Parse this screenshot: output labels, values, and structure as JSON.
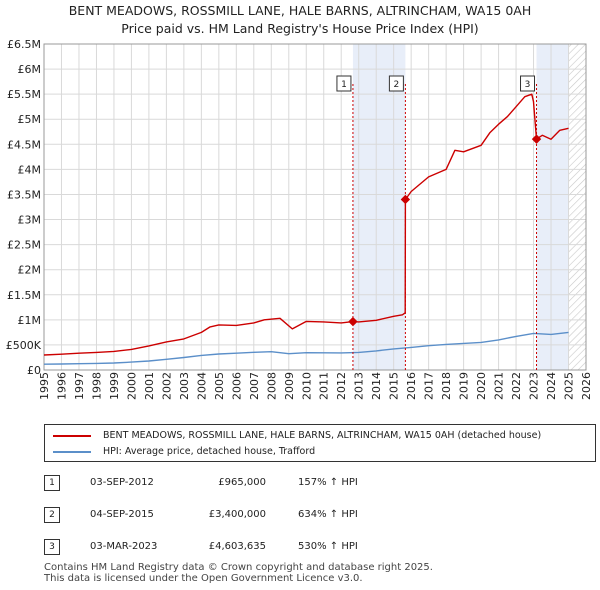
{
  "chart_data": {
    "type": "line",
    "title": "BENT MEADOWS, ROSSMILL LANE, HALE BARNS, ALTRINCHAM, WA15 0AH",
    "subtitle": "Price paid vs. HM Land Registry's House Price Index (HPI)",
    "xlim": [
      1995,
      2026
    ],
    "ylim": [
      0,
      6500000
    ],
    "x_ticks": [
      "1995",
      "1996",
      "1997",
      "1998",
      "1999",
      "2000",
      "2001",
      "2002",
      "2003",
      "2004",
      "2005",
      "2006",
      "2007",
      "2008",
      "2009",
      "2010",
      "2011",
      "2012",
      "2013",
      "2014",
      "2015",
      "2016",
      "2017",
      "2018",
      "2019",
      "2020",
      "2021",
      "2022",
      "2023",
      "2024",
      "2025",
      "2026"
    ],
    "y_ticks": [
      {
        "value": 0,
        "label": "£0"
      },
      {
        "value": 500000,
        "label": "£500K"
      },
      {
        "value": 1000000,
        "label": "£1M"
      },
      {
        "value": 1500000,
        "label": "£1.5M"
      },
      {
        "value": 2000000,
        "label": "£2M"
      },
      {
        "value": 2500000,
        "label": "£2.5M"
      },
      {
        "value": 3000000,
        "label": "£3M"
      },
      {
        "value": 3500000,
        "label": "£3.5M"
      },
      {
        "value": 4000000,
        "label": "£4M"
      },
      {
        "value": 4500000,
        "label": "£4.5M"
      },
      {
        "value": 5000000,
        "label": "£5M"
      },
      {
        "value": 5500000,
        "label": "£5.5M"
      },
      {
        "value": 6000000,
        "label": "£6M"
      },
      {
        "value": 6500000,
        "label": "£6.5M"
      }
    ],
    "grid": true,
    "shaded_regions": [
      [
        2012.67,
        2015.67
      ],
      [
        2023.17,
        2025.0
      ]
    ],
    "hatched_region": [
      2025.0,
      2026.0
    ],
    "series": [
      {
        "name": "BENT MEADOWS, ROSSMILL LANE, HALE BARNS, ALTRINCHAM, WA15 0AH (detached house)",
        "color": "#cc0000",
        "x": [
          1995,
          1996,
          1997,
          1998,
          1999,
          2000,
          2001,
          2002,
          2003,
          2004,
          2004.5,
          2005,
          2006,
          2007,
          2007.6,
          2008.5,
          2009.2,
          2010,
          2011,
          2012,
          2012.67,
          2013,
          2014,
          2015,
          2015.5,
          2015.66,
          2015.67,
          2016,
          2017,
          2018,
          2018.5,
          2019,
          2020,
          2020.5,
          2021,
          2021.5,
          2022,
          2022.5,
          2022.9,
          2023.0,
          2023.17,
          2023.5,
          2024,
          2024.5,
          2025
        ],
        "y": [
          300000,
          315000,
          335000,
          350000,
          370000,
          410000,
          480000,
          560000,
          620000,
          750000,
          860000,
          900000,
          890000,
          940000,
          1000000,
          1030000,
          820000,
          970000,
          960000,
          940000,
          965000,
          960000,
          990000,
          1070000,
          1100000,
          1140000,
          3400000,
          3560000,
          3850000,
          4000000,
          4380000,
          4350000,
          4480000,
          4730000,
          4900000,
          5050000,
          5250000,
          5450000,
          5500000,
          5350000,
          4603635,
          4680000,
          4600000,
          4780000,
          4820000
        ]
      },
      {
        "name": "HPI: Average price, detached house, Trafford",
        "color": "#5b8fc9",
        "x": [
          1995,
          1996,
          1997,
          1998,
          1999,
          2000,
          2001,
          2002,
          2003,
          2004,
          2005,
          2006,
          2007,
          2008,
          2009,
          2010,
          2011,
          2012,
          2013,
          2014,
          2015,
          2016,
          2017,
          2018,
          2019,
          2020,
          2021,
          2022,
          2023,
          2024,
          2025
        ],
        "y": [
          115000,
          120000,
          126000,
          132000,
          140000,
          157000,
          180000,
          213000,
          250000,
          292000,
          320000,
          335000,
          352000,
          365000,
          325000,
          345000,
          342000,
          340000,
          350000,
          380000,
          420000,
          450000,
          485000,
          510000,
          530000,
          550000,
          600000,
          670000,
          730000,
          710000,
          750000
        ]
      }
    ],
    "markers": [
      {
        "label": "1",
        "x": 2012.67,
        "y": 965000
      },
      {
        "label": "2",
        "x": 2015.67,
        "y": 3400000
      },
      {
        "label": "3",
        "x": 2023.17,
        "y": 4603635
      }
    ]
  },
  "legend": {
    "property_label": "BENT MEADOWS, ROSSMILL LANE, HALE BARNS, ALTRINCHAM, WA15 0AH (detached house)",
    "hpi_label": "HPI: Average price, detached house, Trafford"
  },
  "transactions": [
    {
      "num": "1",
      "date": "03-SEP-2012",
      "price": "£965,000",
      "hpi": "157% ↑ HPI"
    },
    {
      "num": "2",
      "date": "04-SEP-2015",
      "price": "£3,400,000",
      "hpi": "634% ↑ HPI"
    },
    {
      "num": "3",
      "date": "03-MAR-2023",
      "price": "£4,603,635",
      "hpi": "530% ↑ HPI"
    }
  ],
  "footer": {
    "line1": "Contains HM Land Registry data © Crown copyright and database right 2025.",
    "line2": "This data is licensed under the Open Government Licence v3.0."
  },
  "colors": {
    "property": "#cc0000",
    "hpi": "#5b8fc9",
    "shade": "#e8eef9"
  }
}
